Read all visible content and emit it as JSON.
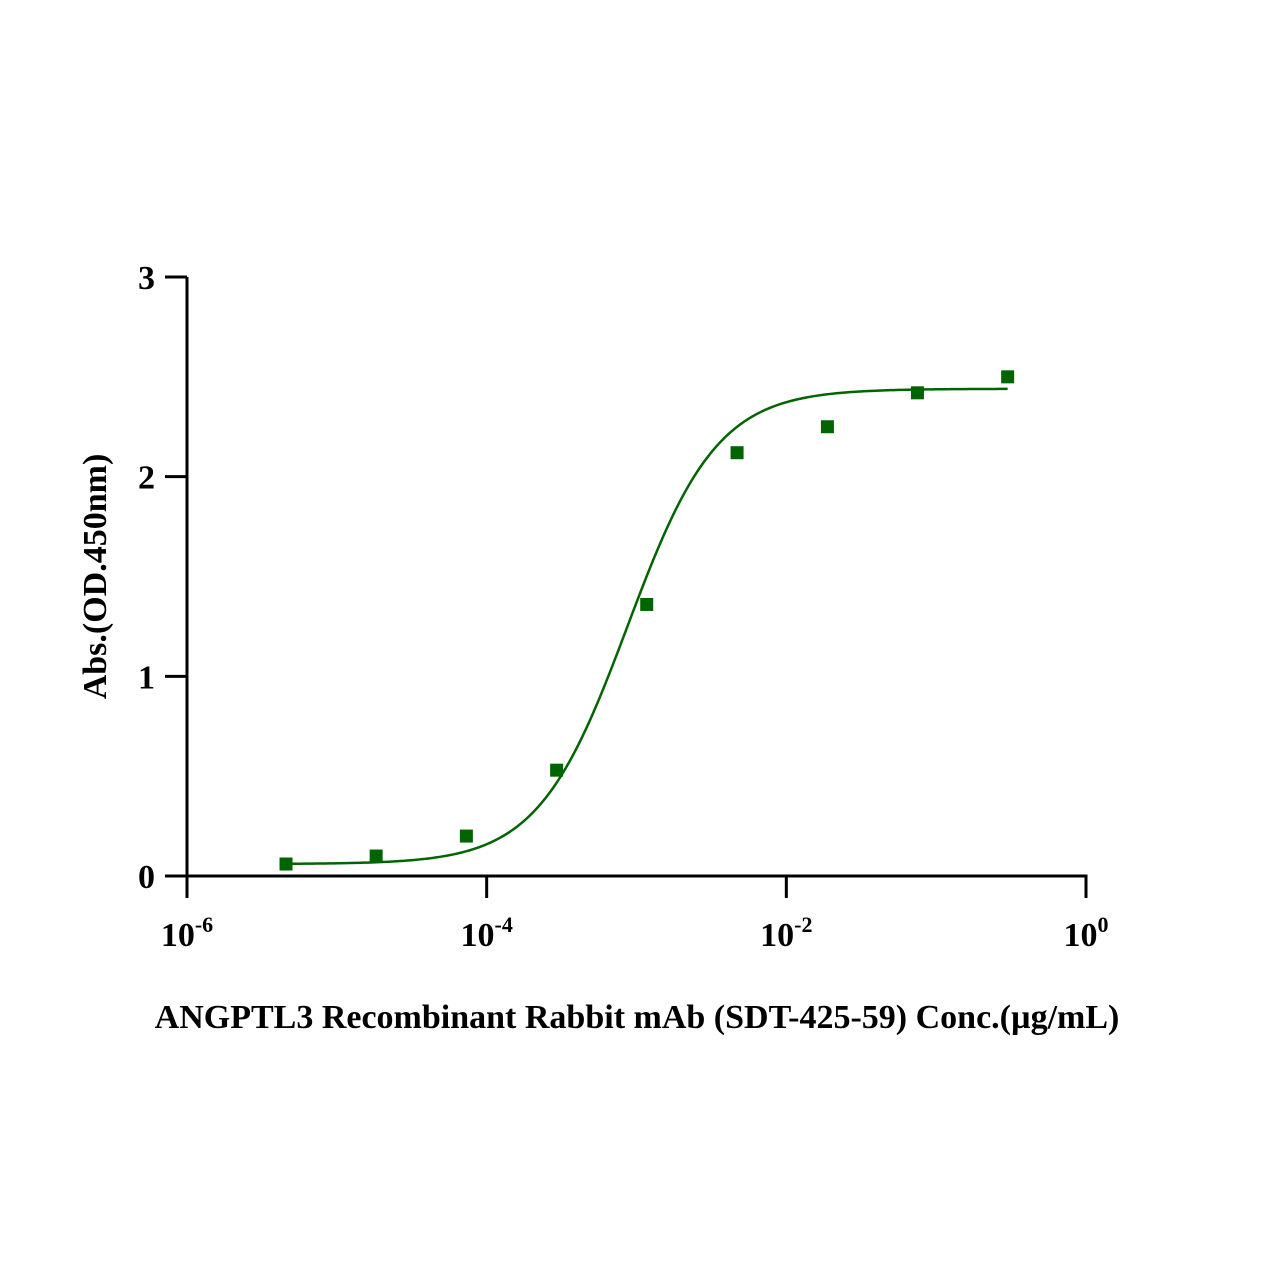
{
  "chart_data": {
    "type": "scatter",
    "title": "",
    "xlabel": "ANGPTL3 Recombinant Rabbit mAb (SDT-425-59) Conc.(µg/mL)",
    "ylabel": "Abs.(OD.450nm)",
    "x_scale": "log",
    "xlim": [
      1e-06,
      1
    ],
    "ylim": [
      0,
      3
    ],
    "x_ticks": [
      {
        "value": 1e-06,
        "base": "10",
        "exp": "-6"
      },
      {
        "value": 0.0001,
        "base": "10",
        "exp": "-4"
      },
      {
        "value": 0.01,
        "base": "10",
        "exp": "-2"
      },
      {
        "value": 1,
        "base": "10",
        "exp": "0"
      }
    ],
    "y_ticks": [
      {
        "value": 0,
        "label": "0"
      },
      {
        "value": 1,
        "label": "1"
      },
      {
        "value": 2,
        "label": "2"
      },
      {
        "value": 3,
        "label": "3"
      }
    ],
    "grid": false,
    "legend": "none",
    "series": [
      {
        "color": "#006400",
        "marker": "square",
        "x": [
          4.58e-06,
          1.83e-05,
          7.32e-05,
          0.000293,
          0.00117,
          0.00469,
          0.0188,
          0.075,
          0.3
        ],
        "y": [
          0.06,
          0.1,
          0.2,
          0.53,
          1.36,
          2.12,
          2.25,
          2.42,
          2.5
        ]
      }
    ],
    "fit_curve": {
      "color": "#006400",
      "model": "4PL",
      "bottom": 0.06,
      "top": 2.44,
      "ec50": 0.00087,
      "hill": 1.45
    }
  }
}
